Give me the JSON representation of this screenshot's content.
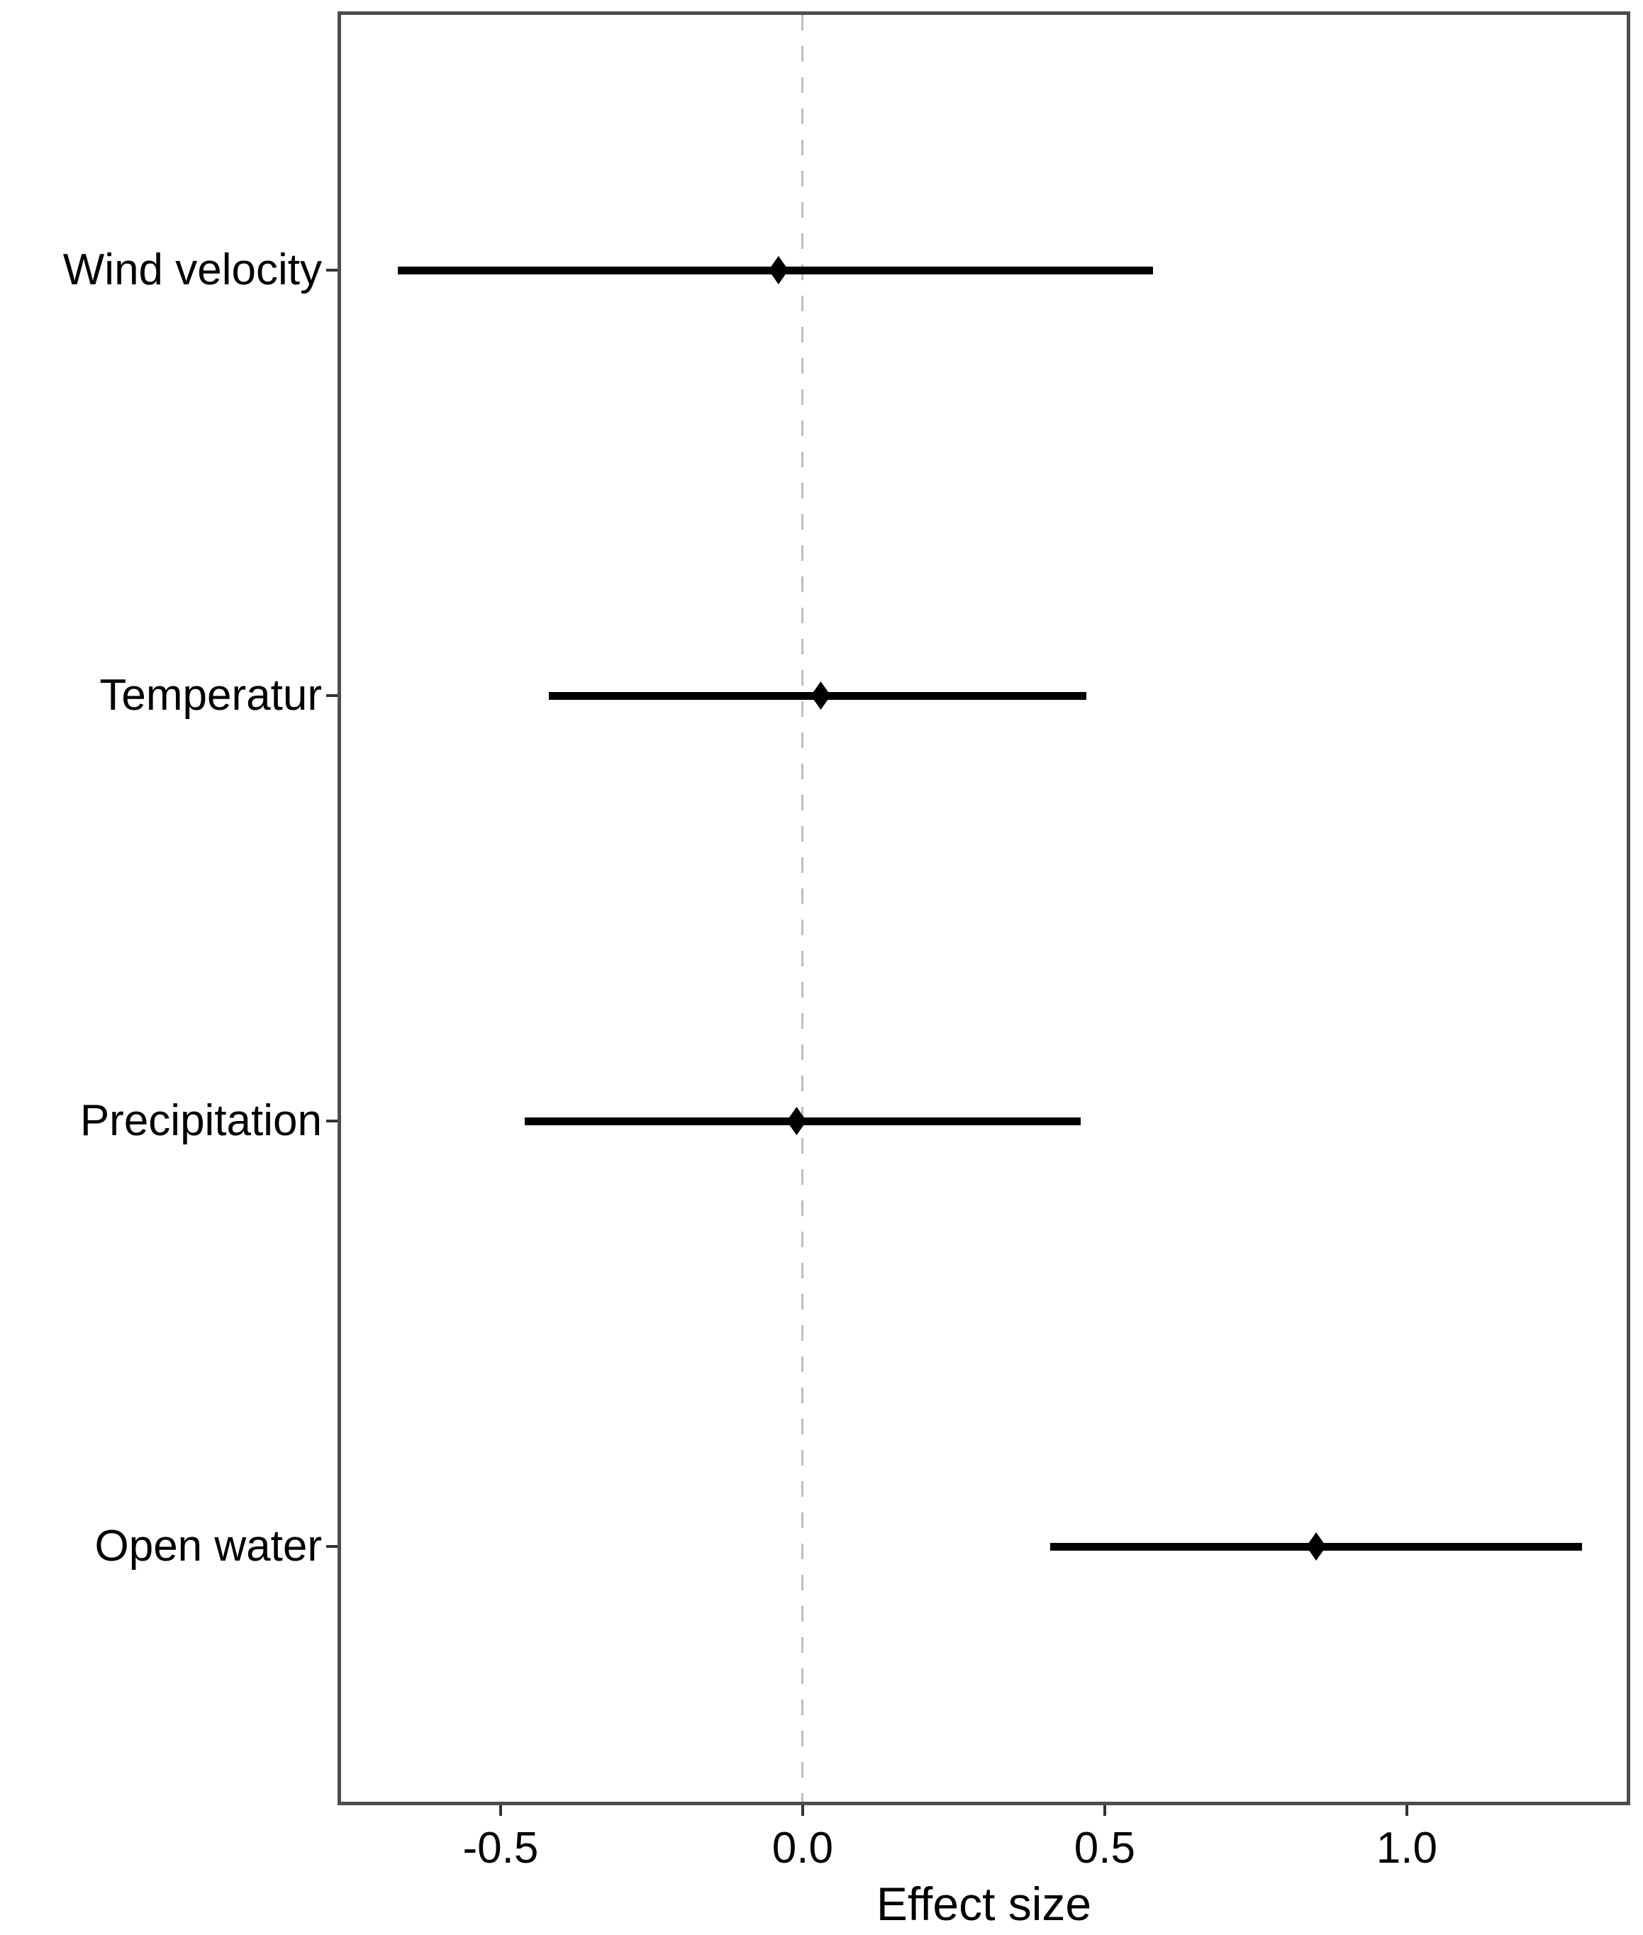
{
  "chart_data": {
    "type": "scatter",
    "subtype": "forest-dot-whisker",
    "orientation": "horizontal",
    "title": "",
    "xlabel": "Effect size",
    "ylabel": "",
    "categories": [
      "Wind velocity",
      "Temperatur",
      "Precipitation",
      "Open water"
    ],
    "series": [
      {
        "name": "effect-estimates",
        "estimates": [
          -0.04,
          0.03,
          -0.01,
          0.85
        ],
        "ci_low": [
          -0.67,
          -0.42,
          -0.46,
          0.41
        ],
        "ci_high": [
          0.58,
          0.47,
          0.46,
          1.29
        ]
      }
    ],
    "x_ticks": [
      -0.5,
      0.0,
      0.5,
      1.0
    ],
    "x_tick_labels": [
      "-0.5",
      "0.0",
      "0.5",
      "1.0"
    ],
    "xlim": [
      -0.764,
      1.364
    ],
    "reference_line_x": 0.0,
    "grid": false,
    "legend": "none",
    "colors": {
      "bar": "#000000",
      "point": "#000000",
      "panel_border": "#4d4d4d",
      "reference_line": "#bdbdbd",
      "text": "#000000",
      "background": "#ffffff"
    }
  }
}
